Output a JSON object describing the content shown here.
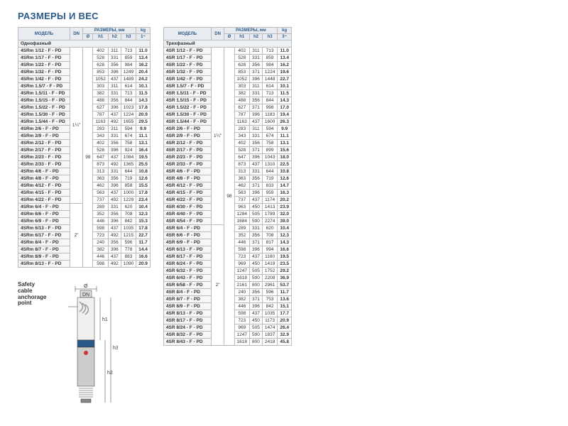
{
  "title": "РАЗМЕРЫ И ВЕС",
  "left": {
    "header": {
      "model": "МОДЕЛЬ",
      "dn": "DN",
      "dims": "РАЗМЕРЫ, мм",
      "kg": "kg",
      "phase": "Однофазный",
      "d": "Ø",
      "h1": "h1",
      "h2": "h2",
      "h3": "h3",
      "w": "1~"
    },
    "dn1": "1¼\"",
    "dn2": "2\"",
    "diam": "98",
    "rows1": [
      [
        "4SRm 1/12 - F - PD",
        "402",
        "311",
        "713",
        "11.0"
      ],
      [
        "4SRm 1/17 - F - PD",
        "528",
        "331",
        "859",
        "13.4"
      ],
      [
        "4SRm 1/22 - F - PD",
        "628",
        "356",
        "984",
        "16.2"
      ],
      [
        "4SRm 1/32 - F - PD",
        "853",
        "396",
        "1249",
        "20.4"
      ],
      [
        "4SRm 1/42 - F - PD",
        "1052",
        "437",
        "1489",
        "24.2"
      ],
      [
        "4SRm 1.5/7 - F - PD",
        "303",
        "311",
        "614",
        "10.1"
      ],
      [
        "4SRm 1.5/11 - F - PD",
        "382",
        "331",
        "713",
        "11.5"
      ],
      [
        "4SRm 1.5/15 - F - PD",
        "488",
        "356",
        "844",
        "14.3"
      ],
      [
        "4SRm 1.5/22 - F - PD",
        "627",
        "396",
        "1023",
        "17.8"
      ],
      [
        "4SRm 1.5/30 - F - PD",
        "787",
        "437",
        "1224",
        "20.9"
      ],
      [
        "4SRm 1.5/44 - F - PD",
        "1163",
        "492",
        "1655",
        "29.5"
      ],
      [
        "4SRm 2/6 - F - PD",
        "283",
        "311",
        "594",
        "9.9"
      ],
      [
        "4SRm 2/9 - F - PD",
        "343",
        "331",
        "674",
        "11.1"
      ],
      [
        "4SRm 2/12 - F - PD",
        "402",
        "356",
        "758",
        "13.1"
      ],
      [
        "4SRm 2/17 - F - PD",
        "528",
        "396",
        "924",
        "16.4"
      ],
      [
        "4SRm 2/23 - F - PD",
        "647",
        "437",
        "1084",
        "19.5"
      ],
      [
        "4SRm 2/33 - F - PD",
        "873",
        "492",
        "1365",
        "25.5"
      ],
      [
        "4SRm 4/6 - F - PD",
        "313",
        "331",
        "644",
        "10.8"
      ],
      [
        "4SRm 4/8 - F - PD",
        "363",
        "356",
        "719",
        "12.6"
      ],
      [
        "4SRm 4/12 - F - PD",
        "462",
        "396",
        "858",
        "15.5"
      ],
      [
        "4SRm 4/15 - F - PD",
        "563",
        "437",
        "1000",
        "17.8"
      ],
      [
        "4SRm 4/22 - F - PD",
        "737",
        "492",
        "1229",
        "23.4"
      ]
    ],
    "rows2": [
      [
        "4SRm 6/4 - F - PD",
        "289",
        "331",
        "620",
        "10.4"
      ],
      [
        "4SRm 6/6 - F - PD",
        "352",
        "356",
        "708",
        "12.3"
      ],
      [
        "4SRm 6/9 - F - PD",
        "446",
        "396",
        "842",
        "15.3"
      ],
      [
        "4SRm 6/13 - F - PD",
        "598",
        "437",
        "1035",
        "17.8"
      ],
      [
        "4SRm 6/17 - F - PD",
        "723",
        "492",
        "1215",
        "22.7"
      ],
      [
        "4SRm 8/4 - F - PD",
        "240",
        "356",
        "596",
        "11.7"
      ],
      [
        "4SRm 8/7 - F - PD",
        "382",
        "396",
        "778",
        "14.4"
      ],
      [
        "4SRm 8/9 - F - PD",
        "446",
        "437",
        "883",
        "16.6"
      ],
      [
        "4SRm 8/13 - F - PD",
        "598",
        "492",
        "1090",
        "20.9"
      ]
    ]
  },
  "right": {
    "header": {
      "model": "МОДЕЛЬ",
      "dn": "DN",
      "dims": "РАЗМЕРЫ, мм",
      "kg": "kg",
      "phase": "Трехфазный",
      "d": "Ø",
      "h1": "h1",
      "h2": "h2",
      "h3": "h3",
      "w": "3~"
    },
    "dn1": "1¼\"",
    "dn2": "2\"",
    "diam": "98",
    "rows1": [
      [
        "4SR 1/12 - F - PD",
        "402",
        "311",
        "713",
        "11.0"
      ],
      [
        "4SR 1/17 - F - PD",
        "528",
        "331",
        "859",
        "13.4"
      ],
      [
        "4SR 1/22 - F - PD",
        "628",
        "356",
        "984",
        "16.2"
      ],
      [
        "4SR 1/32 - F - PD",
        "853",
        "371",
        "1224",
        "19.6"
      ],
      [
        "4SR 1/42 - F - PD",
        "1052",
        "396",
        "1448",
        "22.7"
      ],
      [
        "4SR 1.5/7 - F - PD",
        "303",
        "311",
        "614",
        "10.1"
      ],
      [
        "4SR 1.5/11 - F - PD",
        "382",
        "331",
        "713",
        "11.5"
      ],
      [
        "4SR 1.5/15 - F - PD",
        "488",
        "356",
        "844",
        "14.3"
      ],
      [
        "4SR 1.5/22 - F - PD",
        "627",
        "371",
        "998",
        "17.0"
      ],
      [
        "4SR 1.5/30 - F - PD",
        "787",
        "396",
        "1183",
        "19.4"
      ],
      [
        "4SR 1.5/44 - F - PD",
        "1163",
        "437",
        "1600",
        "26.3"
      ],
      [
        "4SR 2/6 - F - PD",
        "283",
        "311",
        "594",
        "9.9"
      ],
      [
        "4SR 2/9 - F - PD",
        "343",
        "331",
        "674",
        "11.1"
      ],
      [
        "4SR 2/12 - F - PD",
        "402",
        "356",
        "758",
        "13.1"
      ],
      [
        "4SR 2/17 - F - PD",
        "528",
        "371",
        "899",
        "15.6"
      ],
      [
        "4SR 2/23 - F - PD",
        "647",
        "396",
        "1043",
        "18.0"
      ],
      [
        "4SR 2/33 - F - PD",
        "873",
        "437",
        "1310",
        "22.5"
      ],
      [
        "4SR 4/6 - F - PD",
        "313",
        "331",
        "644",
        "10.8"
      ],
      [
        "4SR 4/8 - F - PD",
        "363",
        "356",
        "719",
        "12.6"
      ],
      [
        "4SR 4/12 - F - PD",
        "462",
        "371",
        "833",
        "14.7"
      ],
      [
        "4SR 4/15 - F - PD",
        "563",
        "396",
        "959",
        "16.3"
      ],
      [
        "4SR 4/22 - F - PD",
        "737",
        "437",
        "1174",
        "20.2"
      ],
      [
        "4SR 4/30 - F - PD",
        "963",
        "450",
        "1413",
        "23.9"
      ],
      [
        "4SR 4/40 - F - PD",
        "1284",
        "505",
        "1789",
        "32.0"
      ],
      [
        "4SR 4/54 - F - PD",
        "1684",
        "590",
        "2274",
        "39.0"
      ]
    ],
    "rows2": [
      [
        "4SR 6/4 - F - PD",
        "289",
        "331",
        "620",
        "10.4"
      ],
      [
        "4SR 6/6 - F - PD",
        "352",
        "356",
        "708",
        "12.3"
      ],
      [
        "4SR 6/9 - F - PD",
        "446",
        "371",
        "817",
        "14.3"
      ],
      [
        "4SR 6/13 - F - PD",
        "598",
        "396",
        "994",
        "16.6"
      ],
      [
        "4SR 6/17 - F - PD",
        "723",
        "437",
        "1160",
        "19.5"
      ],
      [
        "4SR 6/24 - F - PD",
        "969",
        "450",
        "1419",
        "23.5"
      ],
      [
        "4SR 6/32 - F - PD",
        "1247",
        "505",
        "1752",
        "29.2"
      ],
      [
        "4SR 6/43 - F - PD",
        "1618",
        "590",
        "2208",
        "36.9"
      ],
      [
        "4SR 6/58 - F - PD",
        "2161",
        "800",
        "2961",
        "53.7"
      ],
      [
        "4SR 8/4 - F - PD",
        "240",
        "356",
        "596",
        "11.7"
      ],
      [
        "4SR 8/7 - F - PD",
        "382",
        "371",
        "753",
        "13.6"
      ],
      [
        "4SR 8/9 - F - PD",
        "446",
        "396",
        "842",
        "15.1"
      ],
      [
        "4SR 8/13 - F - PD",
        "598",
        "437",
        "1035",
        "17.7"
      ],
      [
        "4SR 8/17 - F - PD",
        "723",
        "450",
        "1173",
        "20.9"
      ],
      [
        "4SR 8/24 - F - PD",
        "969",
        "505",
        "1474",
        "26.4"
      ],
      [
        "4SR 8/32 - F - PD",
        "1247",
        "590",
        "1837",
        "32.9"
      ],
      [
        "4SR 8/43 - F - PD",
        "1618",
        "800",
        "2418",
        "45.8"
      ]
    ]
  },
  "diagram": {
    "label": "Safety cable anchorage point",
    "d": "Ø",
    "dn": "DN",
    "h1": "h1",
    "h2": "h2",
    "h3": "h3"
  }
}
